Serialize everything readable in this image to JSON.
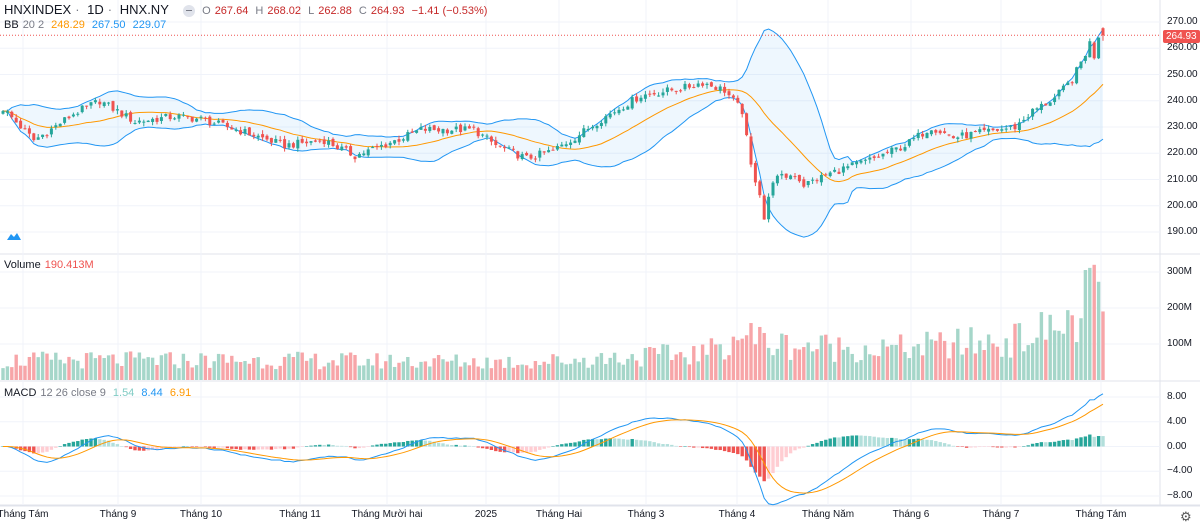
{
  "header": {
    "symbol": "HNXINDEX",
    "interval": "1D",
    "exchange": "HNX.NY",
    "open_label": "O",
    "open": "267.64",
    "high_label": "H",
    "high": "268.02",
    "low_label": "L",
    "low": "262.88",
    "close_label": "C",
    "close": "264.93",
    "change": "−1.41 (−0.53%)"
  },
  "bb": {
    "label": "BB",
    "params": "20 2",
    "basis": "248.29",
    "upper": "267.50",
    "lower": "229.07"
  },
  "volume": {
    "label": "Volume",
    "value": "190.413M"
  },
  "macd": {
    "label": "MACD",
    "params": "12 26 close 9",
    "hist": "1.54",
    "macd": "8.44",
    "signal": "6.91"
  },
  "price_tag": "264.93",
  "colors": {
    "up": "#26a69a",
    "down": "#ef5350",
    "bb": "#2196f3",
    "basis": "#ff9800",
    "vol_up": "#a5d6c9",
    "vol_down": "#f7a5a8"
  },
  "chart_data": {
    "type": "candlestick",
    "price_axis": {
      "ticks": [
        "270.00",
        "260.00",
        "250.00",
        "240.00",
        "230.00",
        "220.00",
        "210.00",
        "200.00",
        "190.00"
      ],
      "range": [
        186,
        272
      ]
    },
    "volume_axis": {
      "ticks": [
        "300M",
        "200M",
        "100M"
      ]
    },
    "macd_axis": {
      "ticks": [
        "8.00",
        "4.00",
        "0.00",
        "−4.00",
        "−8.00"
      ]
    },
    "time_axis": [
      "Tháng Tám",
      "Tháng 9",
      "Tháng 10",
      "Tháng 11",
      "Tháng Mười hai",
      "2025",
      "Tháng Hai",
      "Tháng 3",
      "Tháng 4",
      "Tháng Năm",
      "Tháng 6",
      "Tháng 7",
      "Tháng Tám"
    ],
    "close_path": [
      [
        0,
        237
      ],
      [
        7,
        225
      ],
      [
        10,
        228
      ],
      [
        16,
        235
      ],
      [
        22,
        240
      ],
      [
        30,
        232
      ],
      [
        39,
        234
      ],
      [
        45,
        233
      ],
      [
        55,
        228
      ],
      [
        64,
        223
      ],
      [
        73,
        225
      ],
      [
        80,
        219
      ],
      [
        91,
        226
      ],
      [
        95,
        229
      ],
      [
        107,
        229
      ],
      [
        112,
        223
      ],
      [
        119,
        218
      ],
      [
        125,
        221
      ],
      [
        130,
        226
      ],
      [
        136,
        233
      ],
      [
        145,
        242
      ],
      [
        155,
        245
      ],
      [
        159,
        247
      ],
      [
        164,
        244
      ],
      [
        168,
        236
      ],
      [
        170,
        215
      ],
      [
        172,
        205
      ],
      [
        173,
        195
      ],
      [
        175,
        210
      ],
      [
        180,
        212
      ],
      [
        182,
        208
      ],
      [
        189,
        213
      ],
      [
        198,
        218
      ],
      [
        205,
        223
      ],
      [
        211,
        230
      ],
      [
        216,
        226
      ],
      [
        223,
        228
      ],
      [
        230,
        230
      ],
      [
        234,
        236
      ],
      [
        239,
        241
      ],
      [
        243,
        248
      ],
      [
        246,
        258
      ],
      [
        247,
        262
      ],
      [
        248,
        257
      ],
      [
        249,
        265
      ],
      [
        250,
        264.93
      ]
    ],
    "volume_path_millions": [
      [
        0,
        55
      ],
      [
        60,
        55
      ],
      [
        120,
        50
      ],
      [
        160,
        75
      ],
      [
        168,
        130
      ],
      [
        175,
        100
      ],
      [
        200,
        85
      ],
      [
        230,
        110
      ],
      [
        245,
        170
      ],
      [
        248,
        320
      ],
      [
        249,
        195
      ],
      [
        250,
        190
      ]
    ],
    "last_candle": {
      "open": 267.64,
      "high": 268.02,
      "low": 262.88,
      "close": 264.93
    }
  }
}
